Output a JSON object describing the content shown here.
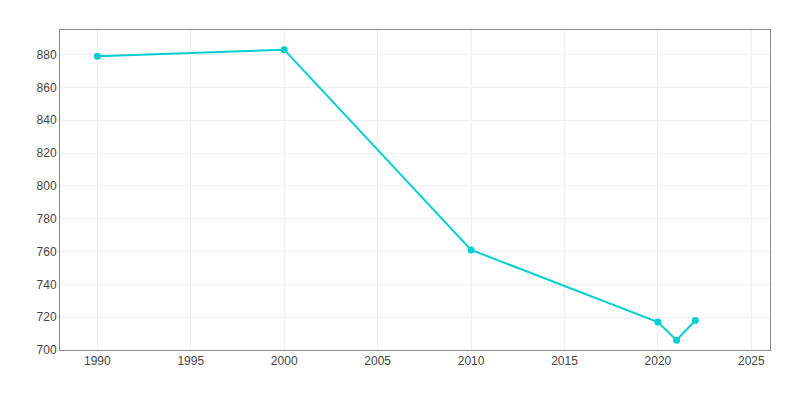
{
  "chart_data": {
    "type": "line",
    "x": [
      1990,
      2000,
      2010,
      2020,
      2021,
      2022
    ],
    "values": [
      879,
      883,
      761,
      717,
      706,
      718
    ],
    "color": "#00CED1",
    "marker": "circle",
    "xlim": [
      1988,
      2026
    ],
    "ylim": [
      700,
      895
    ],
    "xticks": [
      1990,
      1995,
      2000,
      2005,
      2010,
      2015,
      2020,
      2025
    ],
    "yticks": [
      700,
      720,
      740,
      760,
      780,
      800,
      820,
      840,
      860,
      880
    ],
    "grid": true
  }
}
